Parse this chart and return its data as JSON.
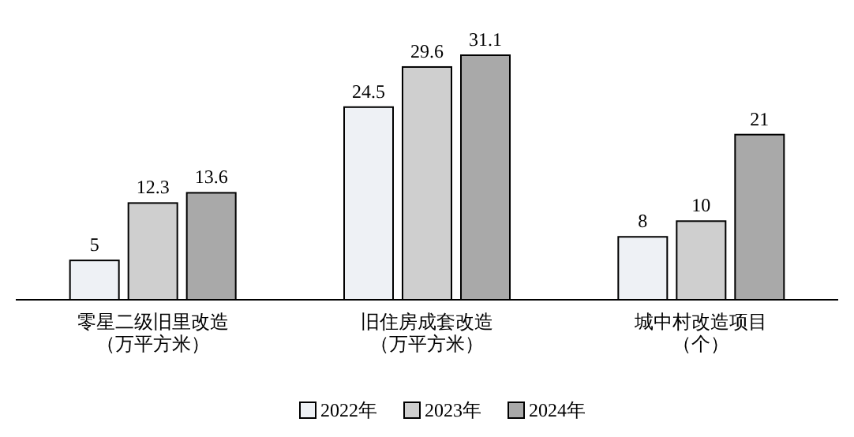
{
  "chart_data": {
    "type": "bar",
    "categories": [
      "零星二级旧里改造（万平方米）",
      "旧住房成套改造（万平方米）",
      "城中村改造项目（个）"
    ],
    "series": [
      {
        "name": "2022年",
        "color": "#eef1f5",
        "values": [
          5,
          24.5,
          8
        ]
      },
      {
        "name": "2023年",
        "color": "#cfcfcf",
        "values": [
          12.3,
          29.6,
          10
        ]
      },
      {
        "name": "2024年",
        "color": "#a9a9a9",
        "values": [
          13.6,
          31.1,
          21
        ]
      }
    ],
    "data_labels": true,
    "legend": "bottom"
  }
}
